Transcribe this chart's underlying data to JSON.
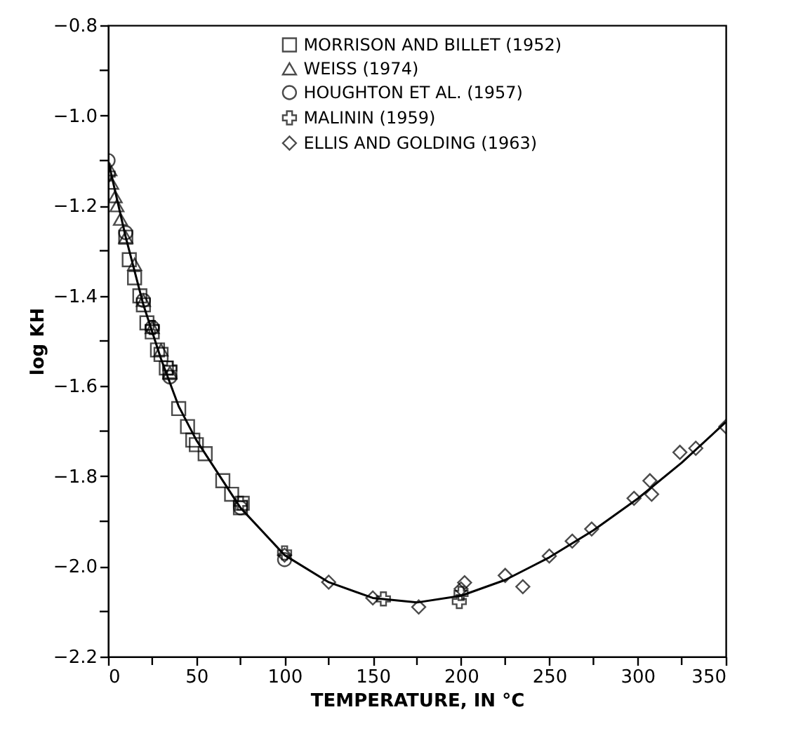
{
  "chart_data": {
    "type": "scatter",
    "xlabel": "TEMPERATURE, IN °C",
    "ylabel": "log KH",
    "xlim": [
      0,
      350
    ],
    "ylim": [
      -2.2,
      -0.8
    ],
    "xticks": [
      0,
      {
        "value": 25,
        "label": null
      },
      50,
      {
        "value": 75,
        "label": null
      },
      100,
      {
        "value": 125,
        "label": null
      },
      150,
      {
        "value": 175,
        "label": null
      },
      200,
      {
        "value": 225,
        "label": null
      },
      250,
      {
        "value": 275,
        "label": null
      },
      300,
      {
        "value": 325,
        "label": null
      },
      350
    ],
    "yticks": [
      {
        "value": -2.2,
        "label": "−2.2"
      },
      {
        "value": -2.1,
        "label": null
      },
      {
        "value": -2.0,
        "label": "−2.0"
      },
      {
        "value": -1.9,
        "label": null
      },
      {
        "value": -1.8,
        "label": "−1.8"
      },
      {
        "value": -1.7,
        "label": null
      },
      {
        "value": -1.6,
        "label": "−1.6"
      },
      {
        "value": -1.5,
        "label": null
      },
      {
        "value": -1.4,
        "label": "−1.4"
      },
      {
        "value": -1.3,
        "label": null
      },
      {
        "value": -1.2,
        "label": "−1.2"
      },
      {
        "value": -1.1,
        "label": null
      },
      {
        "value": -1.0,
        "label": "−1.0"
      },
      {
        "value": -0.9,
        "label": null
      },
      {
        "value": -0.8,
        "label": "−0.8"
      }
    ],
    "grid": false,
    "legend": "top",
    "series": [
      {
        "type": "line",
        "color": "#000000",
        "marker": "none",
        "line_style": "solid",
        "x": [
          0,
          10,
          20,
          30,
          40,
          50,
          75,
          100,
          125,
          150,
          175,
          200,
          225,
          250,
          275,
          300,
          325,
          350
        ],
        "values": [
          -1.1,
          -1.27,
          -1.42,
          -1.54,
          -1.645,
          -1.72,
          -1.87,
          -1.975,
          -2.035,
          -2.07,
          -2.08,
          -2.065,
          -2.03,
          -1.98,
          -1.92,
          -1.85,
          -1.77,
          -1.68
        ]
      },
      {
        "name": "MORRISON AND BILLET (1952)",
        "color": "#000000",
        "marker": "square",
        "x": [
          10,
          12,
          15,
          18,
          20,
          22,
          25,
          28,
          30,
          33,
          35,
          40,
          45,
          48,
          50,
          55,
          65,
          70,
          75,
          76
        ],
        "values": [
          -1.27,
          -1.32,
          -1.36,
          -1.4,
          -1.42,
          -1.46,
          -1.48,
          -1.52,
          -1.53,
          -1.56,
          -1.57,
          -1.65,
          -1.69,
          -1.72,
          -1.73,
          -1.75,
          -1.81,
          -1.84,
          -1.87,
          -1.86
        ]
      },
      {
        "name": "WEISS (1974)",
        "color": "#000000",
        "marker": "triangle",
        "x": [
          1,
          2,
          4,
          5,
          7,
          10,
          15,
          20,
          25,
          30,
          35
        ],
        "values": [
          -1.12,
          -1.15,
          -1.18,
          -1.2,
          -1.23,
          -1.27,
          -1.33,
          -1.41,
          -1.47,
          -1.52,
          -1.57
        ]
      },
      {
        "name": "HOUGHTON ET AL. (1957)",
        "color": "#000000",
        "marker": "circle",
        "x": [
          0,
          10,
          20,
          25,
          35,
          75,
          100
        ],
        "values": [
          -1.1,
          -1.26,
          -1.41,
          -1.47,
          -1.58,
          -1.87,
          -1.985
        ]
      },
      {
        "name": "MALININ (1959)",
        "color": "#000000",
        "marker": "cross",
        "x": [
          0,
          25,
          35,
          75,
          100,
          156,
          199,
          200
        ],
        "values": [
          -1.13,
          -1.47,
          -1.56,
          -1.86,
          -1.97,
          -2.072,
          -2.078,
          -2.06
        ]
      },
      {
        "name": "ELLIS AND GOLDING (1963)",
        "color": "#000000",
        "marker": "diamond",
        "x": [
          100,
          125,
          150,
          176,
          200,
          202,
          225,
          235,
          250,
          263,
          274,
          298,
          307,
          308,
          324,
          333,
          350
        ],
        "values": [
          -1.975,
          -2.035,
          -2.07,
          -2.09,
          -2.05,
          -2.036,
          -2.02,
          -2.045,
          -1.977,
          -1.944,
          -1.917,
          -1.849,
          -1.81,
          -1.84,
          -1.747,
          -1.738,
          -1.69
        ]
      }
    ]
  }
}
